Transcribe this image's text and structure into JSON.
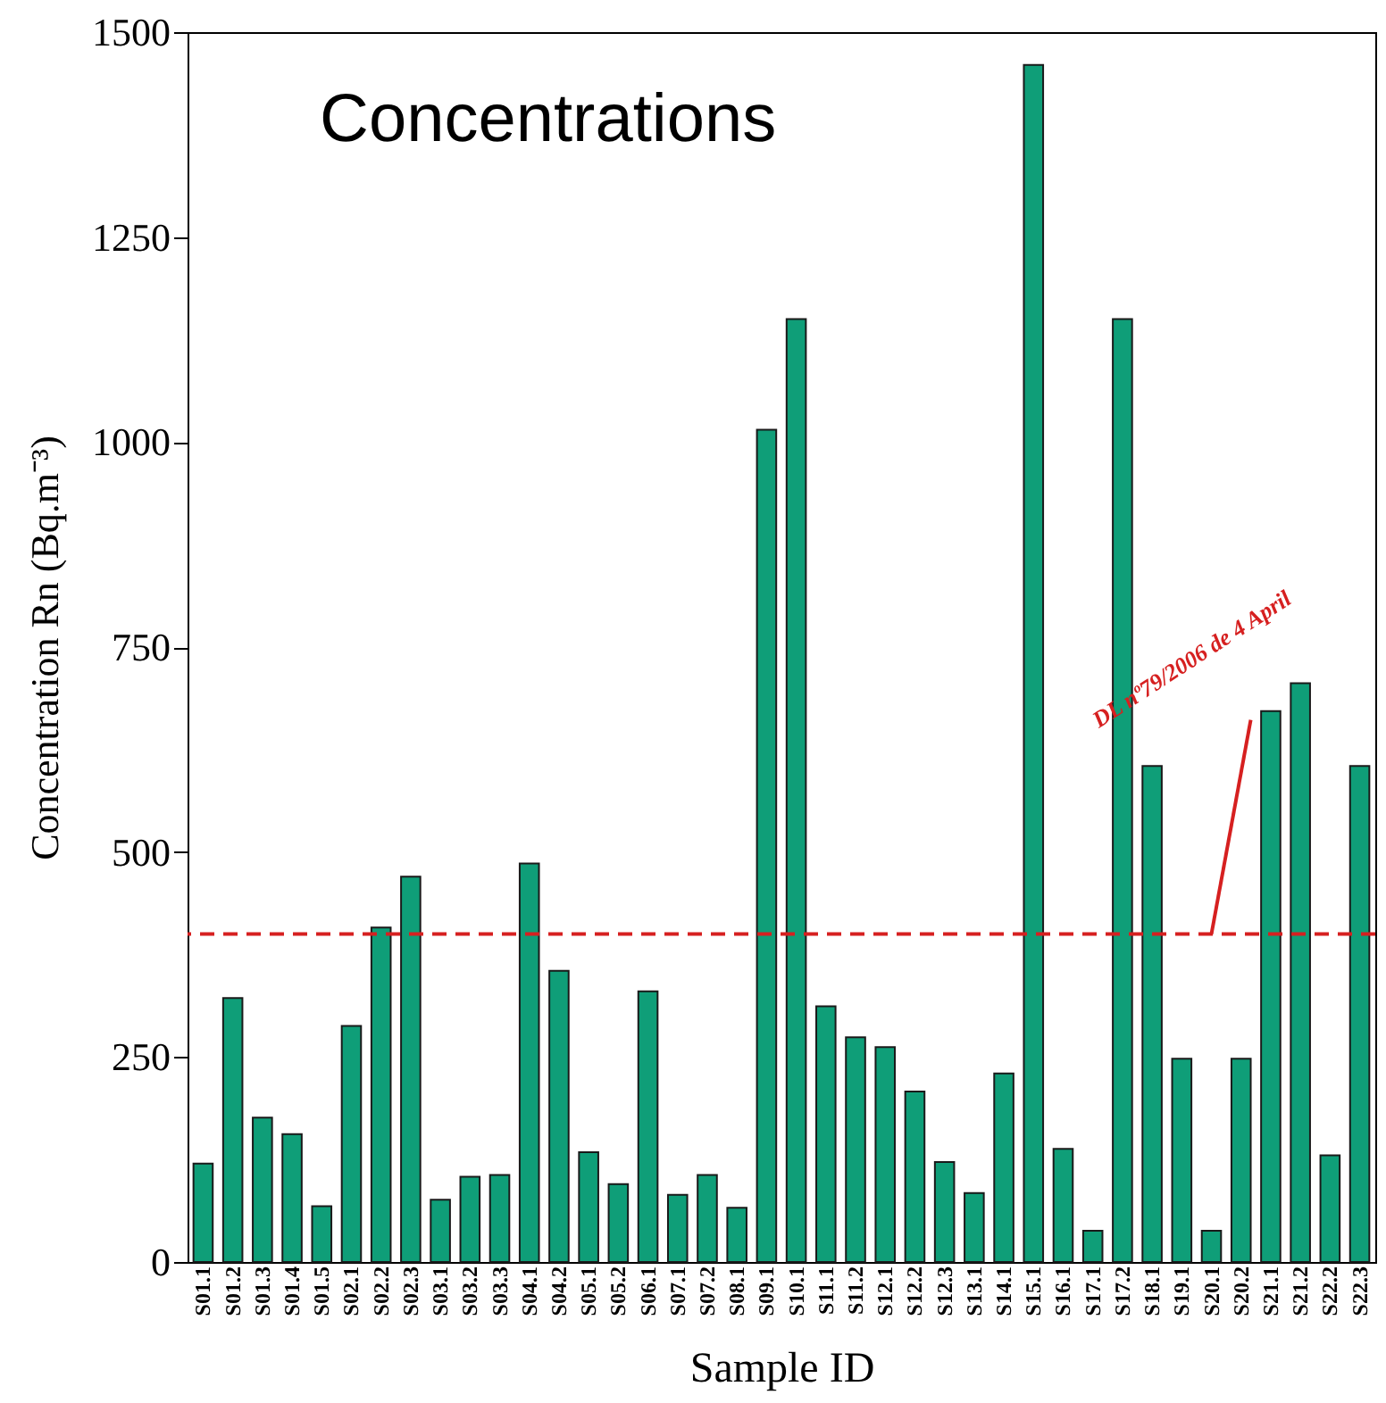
{
  "chart_data": {
    "type": "bar",
    "title": "Concentrations",
    "xlabel": "Sample ID",
    "ylabel": "Concentration Rn (Bq.m⁻³)",
    "categories": [
      "S01.1",
      "S01.2",
      "S01.3",
      "S01.4",
      "S01.5",
      "S02.1",
      "S02.2",
      "S02.3",
      "S03.1",
      "S03.2",
      "S03.3",
      "S04.1",
      "S04.2",
      "S05.1",
      "S05.2",
      "S06.1",
      "S07.1",
      "S07.2",
      "S08.1",
      "S09.1",
      "S10.1",
      "S11.1",
      "S11.2",
      "S12.1",
      "S12.2",
      "S12.3",
      "S13.1",
      "S14.1",
      "S15.1",
      "S16.1",
      "S17.1",
      "S17.2",
      "S18.1",
      "S19.1",
      "S20.1",
      "S20.2",
      "S21.1",
      "S21.2",
      "S22.2",
      "S22.3"
    ],
    "values": [
      120,
      322,
      176,
      156,
      68,
      288,
      408,
      470,
      76,
      104,
      106,
      486,
      355,
      134,
      95,
      330,
      82,
      106,
      66,
      1015,
      1150,
      312,
      274,
      262,
      208,
      122,
      84,
      230,
      1460,
      138,
      38,
      1150,
      605,
      248,
      38,
      248,
      672,
      706,
      130,
      605
    ],
    "color": "#0f9e78",
    "ylim": [
      0,
      1500
    ],
    "yticks": [
      0,
      250,
      500,
      750,
      1000,
      1250,
      1500
    ],
    "grid": false,
    "ref_lines": [
      {
        "axis": "y",
        "value": 400,
        "label": "DL nº79/2006 de 4 April",
        "color": "#d62020",
        "line_style": "dashed"
      }
    ]
  }
}
